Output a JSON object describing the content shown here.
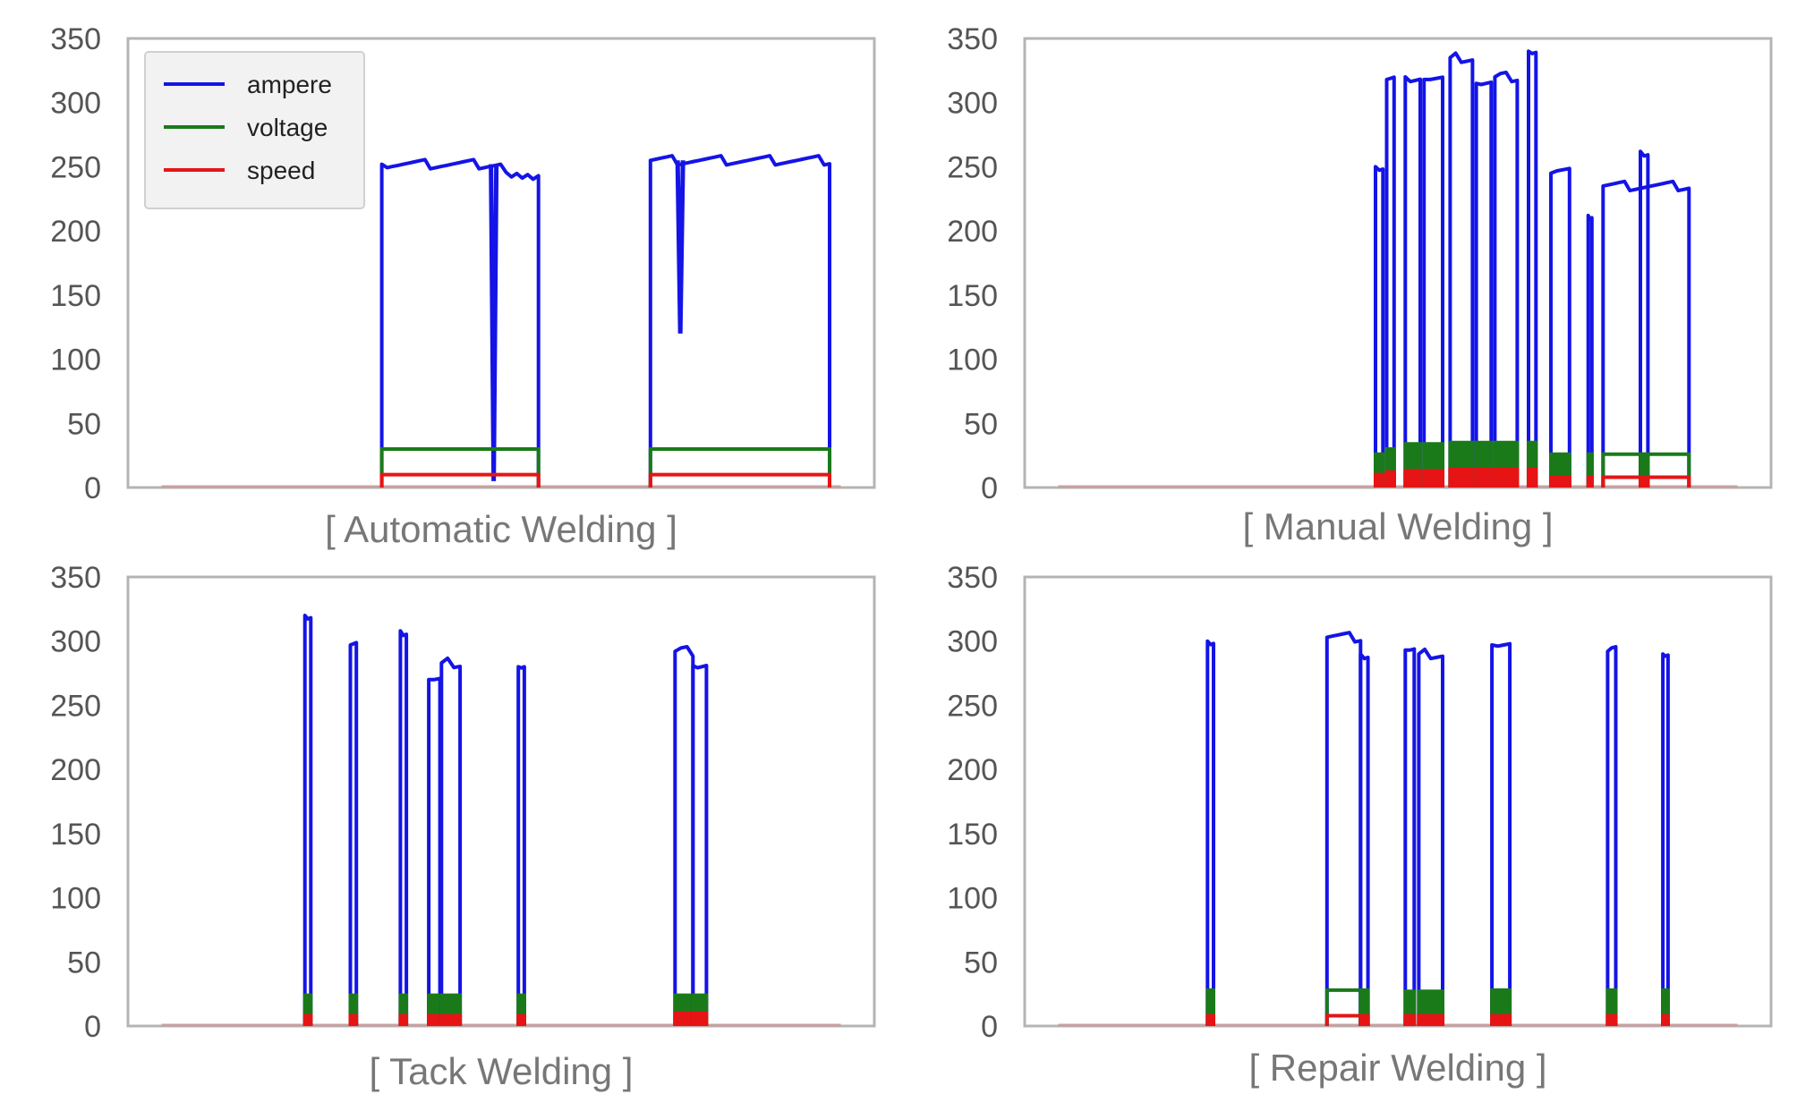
{
  "colors": {
    "ampere": "#1414e6",
    "voltage": "#1a7a1a",
    "speed": "#e61414",
    "frame": "#b4b4b4",
    "tick_text": "#555555",
    "caption_text": "#777777"
  },
  "chart_data": [
    {
      "type": "line",
      "caption": "[ Automatic Welding ]",
      "ylim": [
        0,
        350
      ],
      "yticks": [
        "0",
        "50",
        "100",
        "150",
        "200",
        "250",
        "300",
        "350"
      ],
      "grid": false,
      "legend": {
        "placement": "top-left",
        "entries": [
          {
            "label": "ampere",
            "color": "#1414e6"
          },
          {
            "label": "voltage",
            "color": "#1a7a1a"
          },
          {
            "label": "speed",
            "color": "#e61414"
          }
        ]
      },
      "segments": [
        {
          "start": 0.34,
          "end": 0.55,
          "ampere": 252,
          "voltage": 30,
          "speed": 10,
          "dips": [
            {
              "at": 0.49,
              "to": 5
            }
          ],
          "tail": {
            "from": 0.5,
            "value": 243
          }
        },
        {
          "start": 0.7,
          "end": 0.94,
          "ampere": 255,
          "voltage": 30,
          "speed": 10,
          "dips": [
            {
              "at": 0.74,
              "to": 120
            }
          ],
          "tail": null
        }
      ]
    },
    {
      "type": "line",
      "caption": "[ Manual Welding ]",
      "ylim": [
        0,
        350
      ],
      "yticks": [
        "0",
        "50",
        "100",
        "150",
        "200",
        "250",
        "300",
        "350"
      ],
      "grid": false,
      "legend": null,
      "segments": [
        {
          "start": 0.47,
          "end": 0.48,
          "ampere": 250,
          "voltage": 26,
          "speed": 10
        },
        {
          "start": 0.485,
          "end": 0.495,
          "ampere": 318,
          "voltage": 30,
          "speed": 12
        },
        {
          "start": 0.51,
          "end": 0.53,
          "ampere": 320,
          "voltage": 34,
          "speed": 13
        },
        {
          "start": 0.535,
          "end": 0.56,
          "ampere": 318,
          "voltage": 34,
          "speed": 13
        },
        {
          "start": 0.57,
          "end": 0.6,
          "ampere": 335,
          "voltage": 35,
          "speed": 14
        },
        {
          "start": 0.605,
          "end": 0.625,
          "ampere": 315,
          "voltage": 35,
          "speed": 14
        },
        {
          "start": 0.63,
          "end": 0.66,
          "ampere": 320,
          "voltage": 35,
          "speed": 14
        },
        {
          "start": 0.675,
          "end": 0.685,
          "ampere": 340,
          "voltage": 35,
          "speed": 14
        },
        {
          "start": 0.705,
          "end": 0.73,
          "ampere": 245,
          "voltage": 26,
          "speed": 8
        },
        {
          "start": 0.755,
          "end": 0.76,
          "ampere": 212,
          "voltage": 26,
          "speed": 8
        },
        {
          "start": 0.775,
          "end": 0.89,
          "ampere": 235,
          "voltage": 26,
          "speed": 8
        },
        {
          "start": 0.825,
          "end": 0.835,
          "ampere": 262,
          "voltage": 26,
          "speed": 8
        }
      ]
    },
    {
      "type": "line",
      "caption": "[ Tack Welding ]",
      "ylim": [
        0,
        350
      ],
      "yticks": [
        "0",
        "50",
        "100",
        "150",
        "200",
        "250",
        "300",
        "350"
      ],
      "grid": false,
      "legend": null,
      "segments": [
        {
          "start": 0.237,
          "end": 0.245,
          "ampere": 320,
          "voltage": 24,
          "speed": 8
        },
        {
          "start": 0.298,
          "end": 0.306,
          "ampere": 297,
          "voltage": 24,
          "speed": 8
        },
        {
          "start": 0.365,
          "end": 0.373,
          "ampere": 308,
          "voltage": 24,
          "speed": 8
        },
        {
          "start": 0.403,
          "end": 0.418,
          "ampere": 270,
          "voltage": 24,
          "speed": 8
        },
        {
          "start": 0.42,
          "end": 0.445,
          "ampere": 283,
          "voltage": 24,
          "speed": 8
        },
        {
          "start": 0.523,
          "end": 0.531,
          "ampere": 280,
          "voltage": 24,
          "speed": 8
        },
        {
          "start": 0.733,
          "end": 0.757,
          "ampere": 292,
          "voltage": 24,
          "speed": 10
        },
        {
          "start": 0.757,
          "end": 0.775,
          "ampere": 281,
          "voltage": 24,
          "speed": 10
        }
      ]
    },
    {
      "type": "line",
      "caption": "[ Repair Welding ]",
      "ylim": [
        0,
        350
      ],
      "yticks": [
        "0",
        "50",
        "100",
        "150",
        "200",
        "250",
        "300",
        "350"
      ],
      "grid": false,
      "legend": null,
      "segments": [
        {
          "start": 0.245,
          "end": 0.253,
          "ampere": 300,
          "voltage": 28,
          "speed": 8
        },
        {
          "start": 0.405,
          "end": 0.45,
          "ampere": 303,
          "voltage": 28,
          "speed": 8
        },
        {
          "start": 0.45,
          "end": 0.46,
          "ampere": 290,
          "voltage": 28,
          "speed": 8
        },
        {
          "start": 0.51,
          "end": 0.522,
          "ampere": 293,
          "voltage": 27,
          "speed": 8
        },
        {
          "start": 0.528,
          "end": 0.56,
          "ampere": 290,
          "voltage": 27,
          "speed": 8
        },
        {
          "start": 0.626,
          "end": 0.65,
          "ampere": 297,
          "voltage": 28,
          "speed": 8
        },
        {
          "start": 0.781,
          "end": 0.792,
          "ampere": 292,
          "voltage": 28,
          "speed": 8
        },
        {
          "start": 0.855,
          "end": 0.862,
          "ampere": 290,
          "voltage": 28,
          "speed": 8
        }
      ]
    }
  ]
}
